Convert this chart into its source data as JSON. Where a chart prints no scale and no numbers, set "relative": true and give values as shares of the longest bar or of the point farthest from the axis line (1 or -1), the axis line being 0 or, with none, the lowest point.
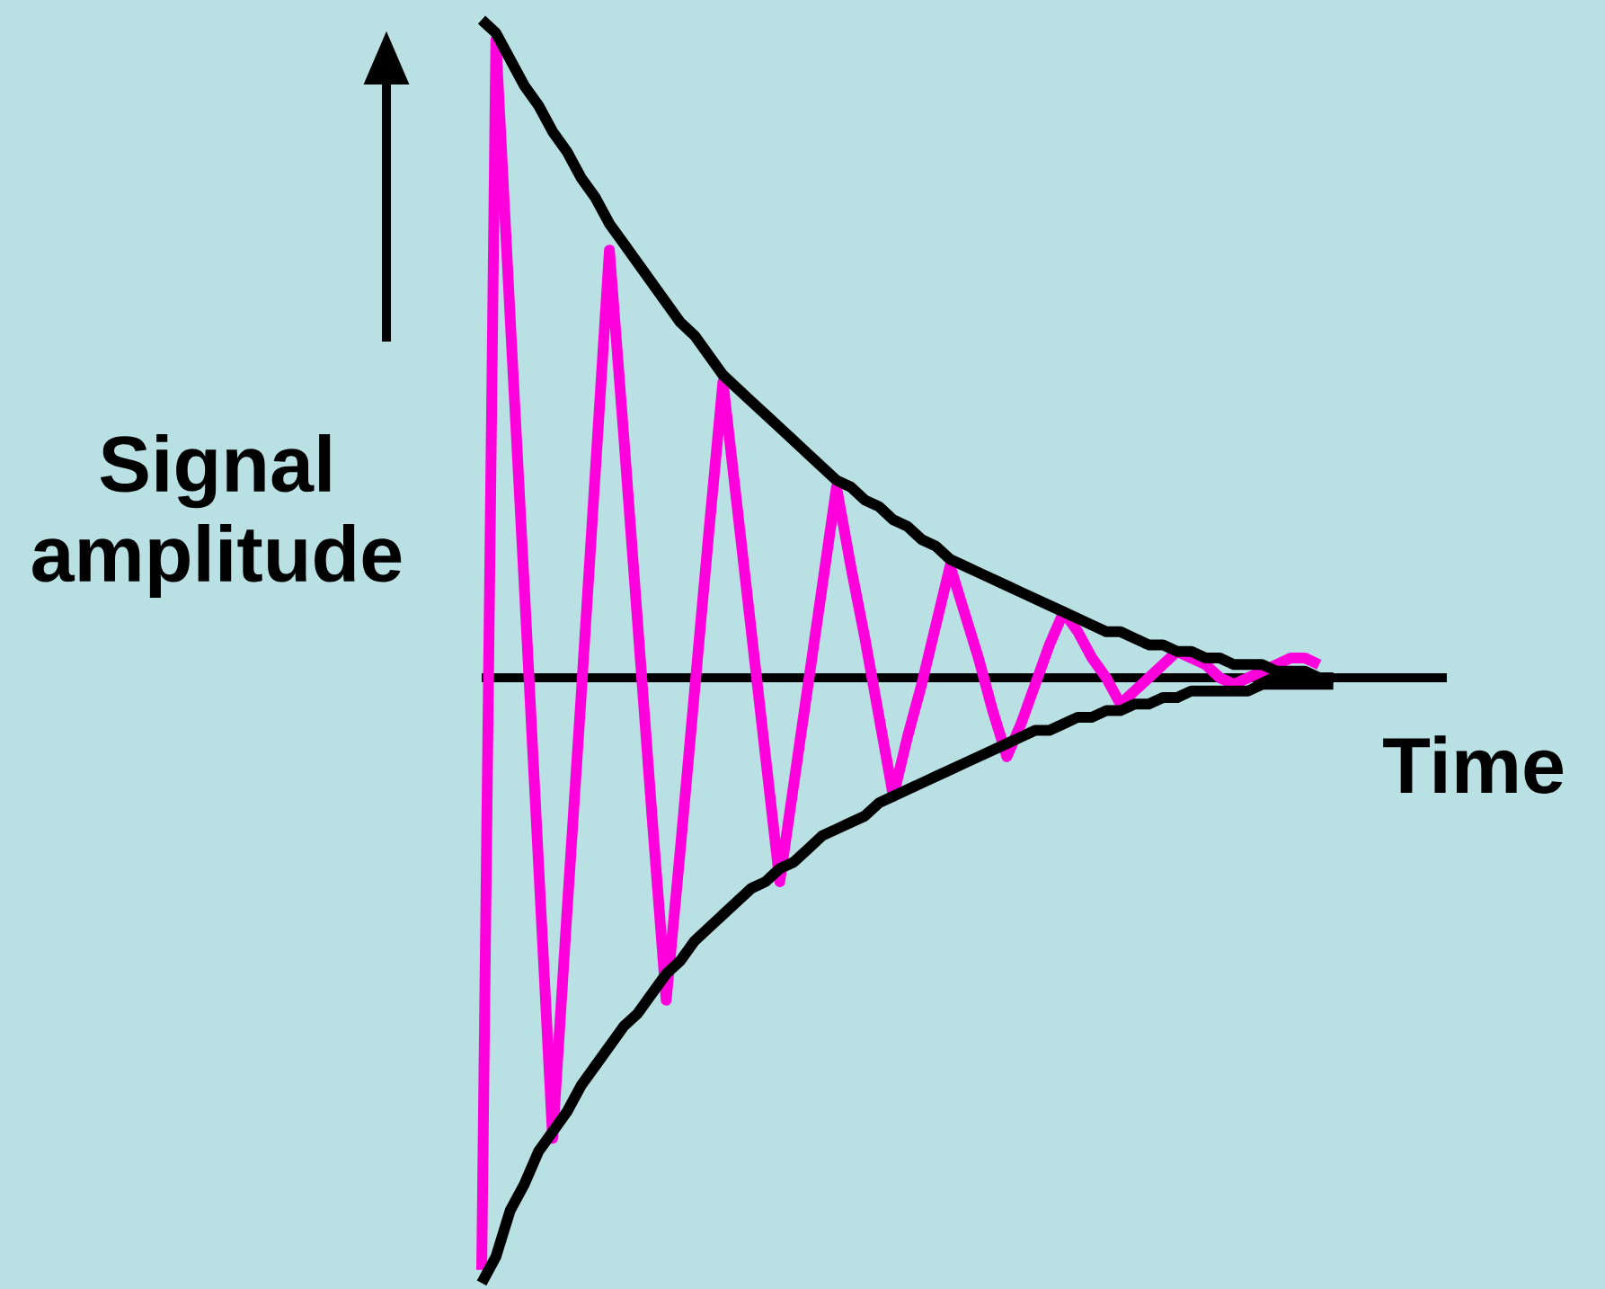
{
  "chart_data": {
    "type": "line",
    "relative": true,
    "xlabel": "Time",
    "ylabel": "Signal amplitude",
    "line_style": "solid",
    "marker": "none",
    "categories": [
      null,
      null,
      null,
      null,
      null,
      null,
      null,
      null,
      null,
      null,
      null,
      null,
      null,
      null,
      null,
      null,
      null,
      null,
      null,
      null,
      null,
      null,
      null,
      null,
      null,
      null,
      null,
      null,
      null,
      null,
      null,
      null,
      null,
      null,
      null,
      null,
      null,
      null,
      null,
      null,
      null,
      null,
      null,
      null,
      null,
      null,
      null,
      null,
      null,
      null,
      null,
      null,
      null,
      null,
      null,
      null,
      null,
      null,
      null,
      null,
      null,
      null,
      null,
      null,
      null,
      null,
      null,
      null,
      null
    ],
    "series": [
      {
        "color": "#ff00dd",
        "values": [
          -0.9,
          0.97,
          0.55,
          0.14,
          -0.28,
          -0.7,
          -0.36,
          -0.03,
          0.31,
          0.65,
          0.37,
          0.08,
          -0.21,
          -0.49,
          -0.26,
          -0.02,
          0.22,
          0.45,
          0.26,
          0.07,
          -0.12,
          -0.31,
          -0.16,
          -0.01,
          0.14,
          0.29,
          0.17,
          0.06,
          -0.06,
          -0.18,
          -0.09,
          -0.01,
          0.08,
          0.17,
          0.1,
          0.03,
          -0.05,
          -0.12,
          -0.07,
          -0.01,
          0.05,
          0.1,
          0.07,
          0.03,
          0.0,
          -0.04,
          -0.02,
          0.0,
          0.02,
          0.04,
          0.03,
          0.02,
          0.0,
          -0.01,
          0.0,
          0.01,
          0.02,
          0.03,
          0.03,
          0.02,
          null,
          null,
          null,
          null,
          null,
          null,
          null,
          null,
          null
        ]
      },
      {
        "color": "#000000",
        "values": [
          1.0,
          0.98,
          0.94,
          0.9,
          0.87,
          0.83,
          0.8,
          0.76,
          0.73,
          0.69,
          0.66,
          0.63,
          0.6,
          0.57,
          0.54,
          0.52,
          0.49,
          0.46,
          0.44,
          0.42,
          0.4,
          0.38,
          0.36,
          0.34,
          0.32,
          0.3,
          0.29,
          0.27,
          0.26,
          0.24,
          0.23,
          0.21,
          0.2,
          0.18,
          0.17,
          0.16,
          0.15,
          0.14,
          0.13,
          0.12,
          0.11,
          0.1,
          0.09,
          0.08,
          0.07,
          0.07,
          0.06,
          0.05,
          0.05,
          0.04,
          0.04,
          0.03,
          0.03,
          0.02,
          0.02,
          0.02,
          0.01,
          0.01,
          0.01,
          0.0,
          0.0,
          null,
          null,
          null,
          null,
          null,
          null,
          null,
          null
        ]
      },
      {
        "color": "#000000",
        "values": [
          -0.92,
          -0.88,
          -0.81,
          -0.77,
          -0.72,
          -0.69,
          -0.66,
          -0.62,
          -0.59,
          -0.56,
          -0.53,
          -0.51,
          -0.48,
          -0.45,
          -0.43,
          -0.4,
          -0.38,
          -0.36,
          -0.34,
          -0.32,
          -0.31,
          -0.29,
          -0.28,
          -0.26,
          -0.24,
          -0.23,
          -0.22,
          -0.21,
          -0.19,
          -0.18,
          -0.17,
          -0.16,
          -0.15,
          -0.14,
          -0.13,
          -0.12,
          -0.11,
          -0.1,
          -0.09,
          -0.08,
          -0.08,
          -0.07,
          -0.06,
          -0.06,
          -0.05,
          -0.05,
          -0.04,
          -0.04,
          -0.03,
          -0.03,
          -0.02,
          -0.02,
          -0.02,
          -0.02,
          -0.02,
          -0.01,
          -0.01,
          -0.01,
          -0.01,
          -0.01,
          -0.01,
          null,
          null,
          null,
          null,
          null,
          null,
          null,
          null
        ]
      }
    ]
  }
}
